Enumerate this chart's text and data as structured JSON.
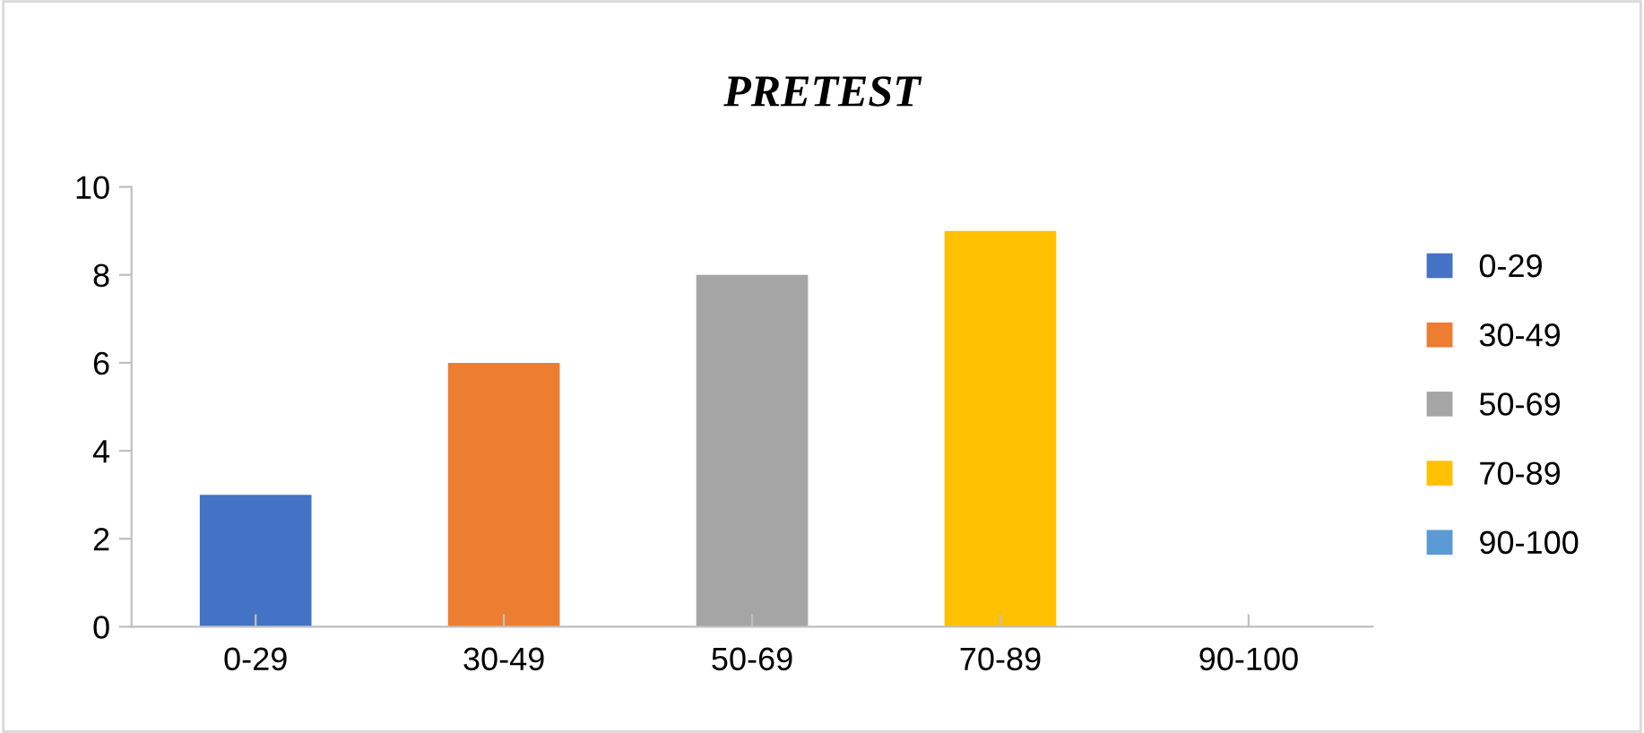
{
  "chart_data": {
    "type": "bar",
    "title": "PRETEST",
    "categories": [
      "0-29",
      "30-49",
      "50-69",
      "70-89",
      "90-100"
    ],
    "series": [
      {
        "name": "0-29",
        "color": "#4472c4",
        "values": [
          3,
          null,
          null,
          null,
          null
        ]
      },
      {
        "name": "30-49",
        "color": "#ed7d31",
        "values": [
          null,
          6,
          null,
          null,
          null
        ]
      },
      {
        "name": "50-69",
        "color": "#a5a5a5",
        "values": [
          null,
          null,
          8,
          null,
          null
        ]
      },
      {
        "name": "70-89",
        "color": "#ffc000",
        "values": [
          null,
          null,
          null,
          9,
          null
        ]
      },
      {
        "name": "90-100",
        "color": "#5b9bd5",
        "values": [
          null,
          null,
          null,
          null,
          0
        ]
      }
    ],
    "ylim": [
      0,
      10
    ],
    "yticks": [
      0,
      2,
      4,
      6,
      8,
      10
    ],
    "grid": false,
    "legend": "right"
  }
}
